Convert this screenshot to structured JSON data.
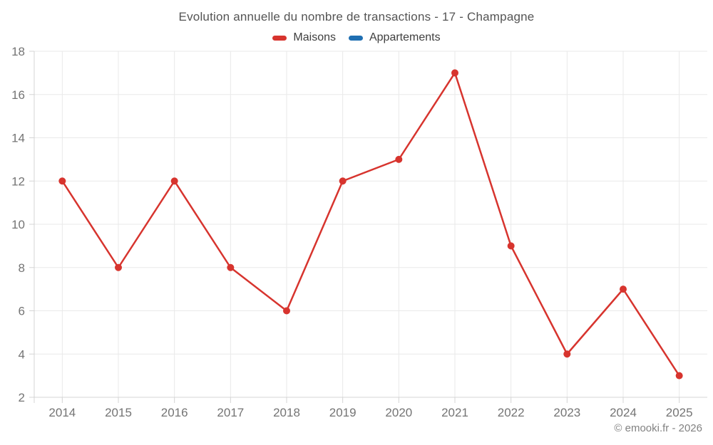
{
  "title": "Evolution annuelle du nombre de transactions - 17 - Champagne",
  "legend": [
    {
      "label": "Maisons",
      "color": "#d7342e"
    },
    {
      "label": "Appartements",
      "color": "#1f6fb2"
    }
  ],
  "footer": {
    "copyright": "© emooki.fr - 2026"
  },
  "colors": {
    "series_maisons": "#d7342e",
    "series_appartements": "#1f6fb2",
    "grid": "#e9e9e9",
    "axis": "#d4d4d4",
    "tick_label": "#747474",
    "title_text": "#545454",
    "background": "#ffffff"
  },
  "chart_data": {
    "type": "line",
    "title": "Evolution annuelle du nombre de transactions - 17 - Champagne",
    "categories": [
      "2014",
      "2015",
      "2016",
      "2017",
      "2018",
      "2019",
      "2020",
      "2021",
      "2022",
      "2023",
      "2024",
      "2025"
    ],
    "series": [
      {
        "name": "Maisons",
        "color": "#d7342e",
        "values": [
          12,
          8,
          12,
          8,
          6,
          12,
          13,
          17,
          9,
          4,
          7,
          3
        ]
      },
      {
        "name": "Appartements",
        "color": "#1f6fb2",
        "values": []
      }
    ],
    "xlabel": "",
    "ylabel": "",
    "ylim": [
      2,
      18
    ],
    "ytick_step": 2,
    "yticks": [
      2,
      4,
      6,
      8,
      10,
      12,
      14,
      16,
      18
    ],
    "grid": true,
    "legend_position": "top",
    "marker_radius": 5,
    "line_width": 2.5
  }
}
